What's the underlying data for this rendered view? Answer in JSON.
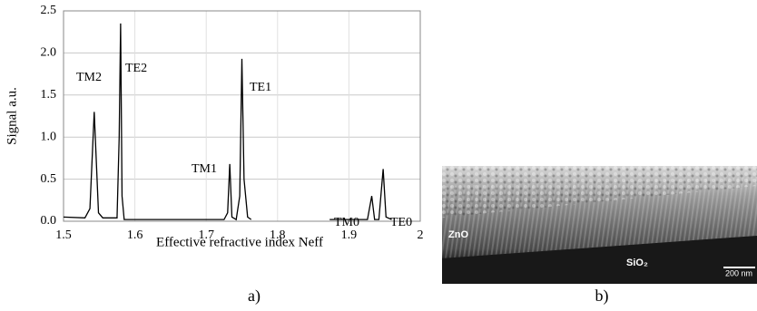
{
  "chart_data": {
    "type": "line",
    "xlabel": "Effective refractive index Neff",
    "ylabel": "Signal a.u.",
    "x": [
      1.5,
      1.53,
      1.537,
      1.543,
      1.549,
      1.555,
      1.575,
      1.578,
      1.58,
      1.582,
      1.585,
      1.6,
      1.65,
      1.7,
      1.725,
      1.73,
      1.733,
      1.736,
      1.742,
      1.747,
      1.75,
      1.753,
      1.758,
      1.763,
      1.82,
      1.873,
      1.9,
      1.926,
      1.932,
      1.936,
      1.942,
      1.948,
      1.952,
      1.96
    ],
    "series": [
      {
        "color": "#000000",
        "values": [
          0.05,
          0.04,
          0.15,
          1.3,
          0.1,
          0.04,
          0.04,
          1.0,
          2.35,
          0.3,
          0.02,
          0.02,
          0.02,
          0.02,
          0.02,
          0.1,
          0.68,
          0.05,
          0.02,
          0.3,
          1.93,
          0.5,
          0.05,
          0.02,
          null,
          0.02,
          0.02,
          0.02,
          0.3,
          0.02,
          0.02,
          0.62,
          0.05,
          0.02
        ]
      }
    ],
    "annotations": [
      "TM2",
      "TE2",
      "TM1",
      "TE1",
      "TM0",
      "TE0"
    ],
    "xlim": [
      1.5,
      2
    ],
    "xticks": [
      1.5,
      1.6,
      1.7,
      1.8,
      1.9,
      2
    ],
    "ylim": [
      0,
      2.5
    ],
    "yticks": [
      {
        "value": 0,
        "label": "0.0"
      },
      0.5,
      {
        "value": 1,
        "label": "1.0"
      },
      1.5,
      {
        "value": 2,
        "label": "2.0"
      },
      2.5
    ],
    "grid": true
  },
  "panel_labels": [
    "a)",
    "b)"
  ],
  "image": {
    "labels": [
      "ZnO",
      "SiO₂",
      "200 nm"
    ]
  }
}
